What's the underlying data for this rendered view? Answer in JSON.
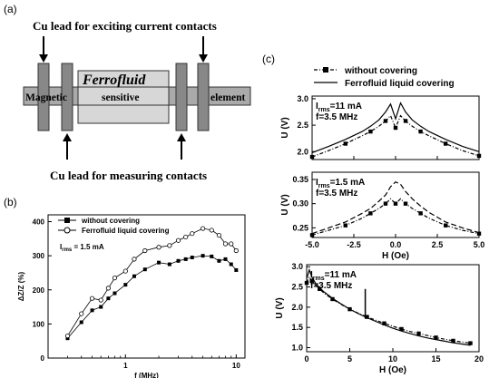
{
  "panels": {
    "a": {
      "tag": "(a)",
      "top_caption": "Cu lead for exciting current contacts",
      "bottom_caption": "Cu lead for measuring contacts",
      "ferrofluid_label": "Ferrofluid",
      "element_words": [
        "Magnetic",
        "sensitive",
        "element"
      ]
    },
    "b": {
      "tag": "(b)",
      "legend": [
        "without covering",
        "Ferrofluid liquid covering"
      ],
      "annotation": "I",
      "annotation_sub": "rms",
      "annotation_rest": " = 1.5 mA"
    },
    "c": {
      "tag": "(c)",
      "legend": [
        "without covering",
        "Ferrofluid liquid covering"
      ]
    }
  },
  "chart_data": [
    {
      "id": "b",
      "type": "line",
      "xlabel": "f (MHz)",
      "ylabel": "ΔZ/Z (%)",
      "xscale": "log",
      "xlim": [
        0.2,
        12
      ],
      "ylim": [
        0,
        420
      ],
      "yticks": [
        0,
        100,
        200,
        300,
        400
      ],
      "xticks": [
        {
          "v": 1,
          "label": "1"
        },
        {
          "v": 10,
          "label": "10"
        }
      ],
      "series": [
        {
          "name": "without covering",
          "marker": "filled-square",
          "x": [
            0.3,
            0.4,
            0.5,
            0.6,
            0.7,
            0.8,
            1.0,
            1.2,
            1.5,
            2.0,
            2.5,
            3.0,
            3.5,
            4.0,
            5.0,
            6.0,
            7.0,
            8.0,
            9.0,
            10.0
          ],
          "y": [
            58,
            105,
            140,
            150,
            175,
            190,
            215,
            240,
            260,
            280,
            275,
            285,
            290,
            295,
            300,
            298,
            285,
            290,
            275,
            258
          ]
        },
        {
          "name": "Ferrofluid liquid covering",
          "marker": "open-circle",
          "x": [
            0.3,
            0.4,
            0.5,
            0.6,
            0.7,
            0.8,
            1.0,
            1.2,
            1.5,
            2.0,
            2.5,
            3.0,
            3.5,
            4.0,
            5.0,
            6.0,
            7.0,
            8.0,
            9.0,
            10.0
          ],
          "y": [
            65,
            130,
            175,
            170,
            205,
            235,
            255,
            290,
            315,
            325,
            330,
            345,
            355,
            365,
            380,
            375,
            360,
            335,
            335,
            315
          ]
        }
      ]
    },
    {
      "id": "c1",
      "type": "line",
      "xlabel": "",
      "ylabel": "U (V)",
      "xlim": [
        -5,
        5
      ],
      "ylim": [
        1.85,
        3.05
      ],
      "yticks": [
        2.0,
        2.5,
        3.0
      ],
      "xticks": [
        -5.0,
        -2.5,
        0.0,
        2.5,
        5.0
      ],
      "annotation": [
        "I",
        "rms",
        "=11 mA"
      ],
      "annotation2": "f=3.5 MHz",
      "series": [
        {
          "name": "without covering",
          "style": "dash-dot-square",
          "x": [
            -5,
            -4,
            -3,
            -2,
            -1.5,
            -1,
            -0.6,
            -0.3,
            0,
            0.3,
            0.6,
            1,
            1.5,
            2,
            3,
            4,
            5
          ],
          "y": [
            1.9,
            2.02,
            2.15,
            2.3,
            2.38,
            2.48,
            2.58,
            2.68,
            2.45,
            2.68,
            2.58,
            2.48,
            2.38,
            2.3,
            2.15,
            2.02,
            1.92
          ]
        },
        {
          "name": "Ferrofluid liquid covering",
          "style": "solid",
          "x": [
            -5,
            -4,
            -3,
            -2,
            -1.5,
            -1,
            -0.6,
            -0.3,
            0,
            0.3,
            0.6,
            1,
            1.5,
            2,
            3,
            4,
            5
          ],
          "y": [
            1.98,
            2.1,
            2.23,
            2.38,
            2.48,
            2.6,
            2.75,
            2.9,
            2.62,
            2.92,
            2.75,
            2.6,
            2.48,
            2.38,
            2.23,
            2.1,
            2.0
          ]
        }
      ]
    },
    {
      "id": "c2",
      "type": "line",
      "xlabel": "H (Oe)",
      "ylabel": "U (V)",
      "xlim": [
        -5,
        5
      ],
      "ylim": [
        0.23,
        0.365
      ],
      "yticks": [
        0.25,
        0.3,
        0.35
      ],
      "xticks": [
        {
          "v": -5,
          "label": "-5.0"
        },
        {
          "v": -2.5,
          "label": "-2.5"
        },
        {
          "v": 0,
          "label": "0.0"
        },
        {
          "v": 2.5,
          "label": "2.5"
        },
        {
          "v": 5,
          "label": "5.0"
        }
      ],
      "annotation": [
        "I",
        "rms",
        "=1.5 mA"
      ],
      "annotation2": "f=3.5 MHz",
      "series": [
        {
          "name": "without covering",
          "style": "dash-dot-square",
          "x": [
            -5,
            -4,
            -3,
            -2,
            -1.5,
            -1,
            -0.6,
            -0.3,
            0,
            0.3,
            0.6,
            1,
            1.5,
            2,
            3,
            4,
            5
          ],
          "y": [
            0.235,
            0.245,
            0.255,
            0.27,
            0.28,
            0.29,
            0.3,
            0.31,
            0.3,
            0.31,
            0.3,
            0.29,
            0.28,
            0.27,
            0.255,
            0.245,
            0.238
          ]
        },
        {
          "name": "Ferrofluid liquid covering",
          "style": "dashed",
          "x": [
            -5,
            -4,
            -3,
            -2,
            -1.5,
            -1,
            -0.6,
            -0.3,
            0,
            0.3,
            0.6,
            1,
            1.5,
            2,
            3,
            4,
            5
          ],
          "y": [
            0.238,
            0.25,
            0.262,
            0.28,
            0.29,
            0.305,
            0.318,
            0.335,
            0.345,
            0.34,
            0.325,
            0.31,
            0.295,
            0.282,
            0.262,
            0.25,
            0.24
          ]
        }
      ]
    },
    {
      "id": "c3",
      "type": "line",
      "xlabel": "H (Oe)",
      "ylabel": "U (V)",
      "xlim": [
        0,
        20
      ],
      "ylim": [
        0.9,
        3.05
      ],
      "yticks": [
        1.0,
        1.5,
        2.0,
        2.5,
        3.0
      ],
      "xticks": [
        0,
        5,
        10,
        15,
        20
      ],
      "annotation": [
        "I",
        "rms",
        "=11 mA"
      ],
      "annotation2": "f=3.5 MHz",
      "series": [
        {
          "name": "without covering",
          "style": "dash-dot-square",
          "x": [
            0,
            0.3,
            0.6,
            1,
            1.5,
            2,
            3,
            4,
            5,
            6,
            7,
            8,
            9,
            10,
            11,
            12,
            13,
            14,
            15,
            16,
            17,
            18,
            19
          ],
          "y": [
            2.6,
            2.75,
            2.65,
            2.55,
            2.45,
            2.35,
            2.2,
            2.07,
            1.95,
            1.85,
            1.76,
            1.68,
            1.6,
            1.53,
            1.46,
            1.4,
            1.35,
            1.3,
            1.25,
            1.21,
            1.17,
            1.14,
            1.11
          ]
        },
        {
          "name": "Ferrofluid liquid covering",
          "style": "solid",
          "x": [
            0,
            0.3,
            0.6,
            1,
            1.5,
            2,
            3,
            4,
            5,
            6,
            7,
            8,
            9,
            10,
            11,
            12,
            13,
            14,
            15,
            16,
            17,
            18,
            19
          ],
          "y": [
            2.7,
            2.92,
            2.75,
            2.6,
            2.48,
            2.38,
            2.22,
            2.08,
            1.95,
            1.84,
            1.74,
            1.65,
            1.56,
            1.48,
            1.41,
            1.35,
            1.29,
            1.24,
            1.2,
            1.16,
            1.12,
            1.09,
            1.06
          ]
        }
      ]
    }
  ]
}
